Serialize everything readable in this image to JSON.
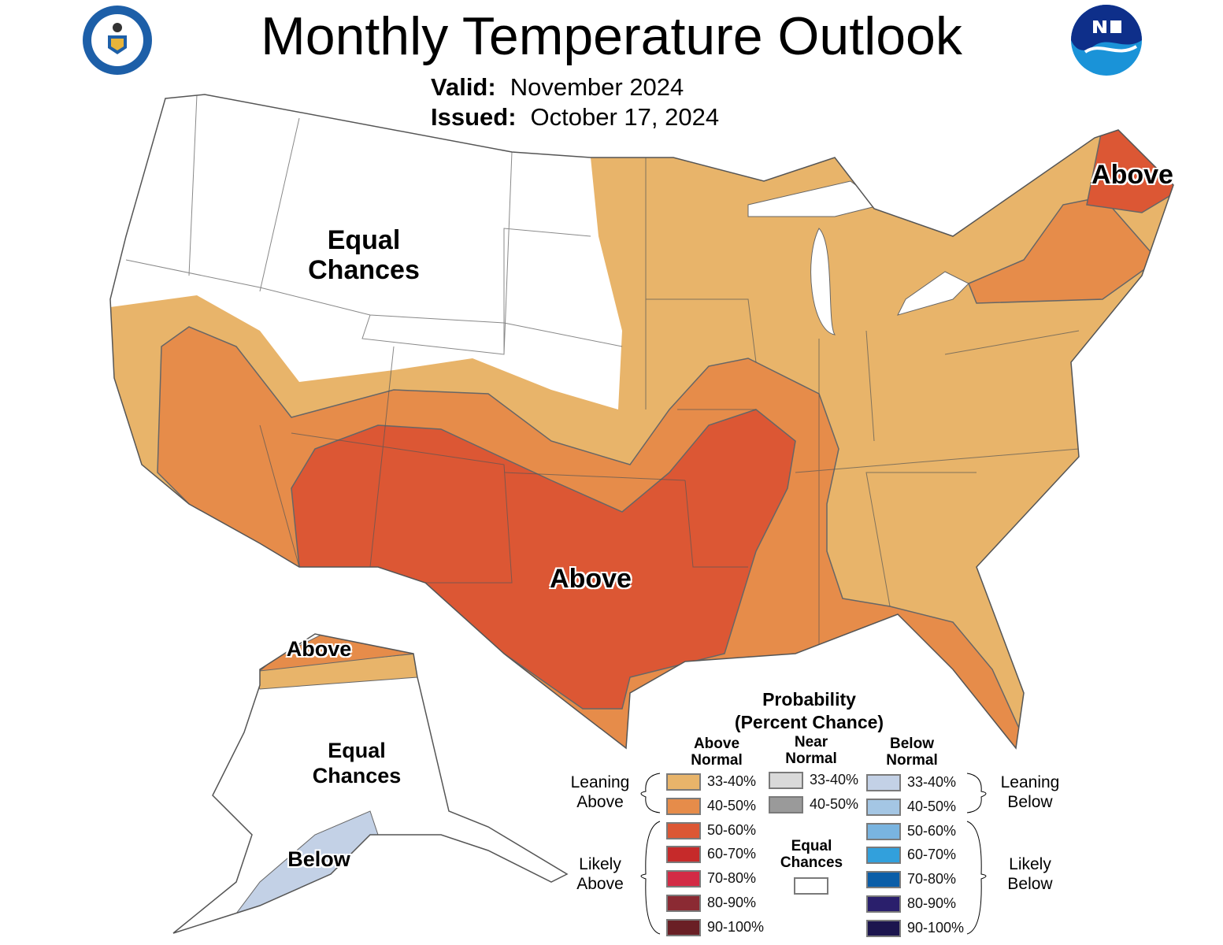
{
  "title": "Monthly Temperature Outlook",
  "valid_label": "Valid:",
  "valid_value": "November 2024",
  "issued_label": "Issued:",
  "issued_value": "October 17, 2024",
  "logos": {
    "left": "Department of Commerce - United States of America",
    "right": "NOAA"
  },
  "map_labels": {
    "ec_conus": "Equal Chances",
    "above_south": "Above",
    "above_ne": "Above",
    "ak_above": "Above",
    "ak_ec": "Equal Chances",
    "ak_below": "Below"
  },
  "legend": {
    "title1": "Probability",
    "title2": "(Percent Chance)",
    "col_above": "Above Normal",
    "col_near": "Near Normal",
    "col_below": "Below Normal",
    "leaning_above": "Leaning Above",
    "likely_above": "Likely Above",
    "leaning_below": "Leaning Below",
    "likely_below": "Likely Below",
    "equal_chances": "Equal Chances",
    "above": [
      {
        "label": "33-40%",
        "color": "#e8b46a"
      },
      {
        "label": "40-50%",
        "color": "#e68c4a"
      },
      {
        "label": "50-60%",
        "color": "#dc5734"
      },
      {
        "label": "60-70%",
        "color": "#c62a2a"
      },
      {
        "label": "70-80%",
        "color": "#d32b45"
      },
      {
        "label": "80-90%",
        "color": "#8b2a33"
      },
      {
        "label": "90-100%",
        "color": "#6a1f25"
      }
    ],
    "near": [
      {
        "label": "33-40%",
        "color": "#d9d9d9"
      },
      {
        "label": "40-50%",
        "color": "#9a9a9a"
      }
    ],
    "below": [
      {
        "label": "33-40%",
        "color": "#c3d1e6"
      },
      {
        "label": "40-50%",
        "color": "#a4c6e4"
      },
      {
        "label": "50-60%",
        "color": "#79b4e0"
      },
      {
        "label": "60-70%",
        "color": "#32a0dc"
      },
      {
        "label": "70-80%",
        "color": "#0b5ea8"
      },
      {
        "label": "80-90%",
        "color": "#2a1f6c"
      },
      {
        "label": "90-100%",
        "color": "#1c154e"
      }
    ]
  }
}
